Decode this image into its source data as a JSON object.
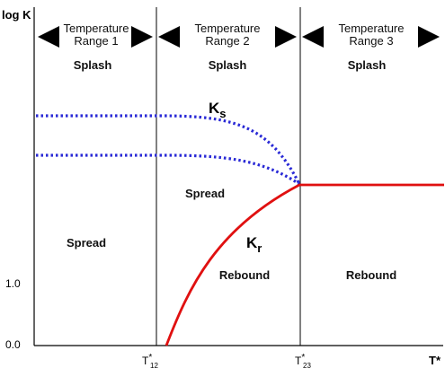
{
  "axes": {
    "y_label": "log K",
    "x_label": "T*",
    "y_ticks": [
      "1.0",
      "0.0"
    ],
    "x_ticks": [
      {
        "main": "T",
        "sup": "*",
        "sub": "12"
      },
      {
        "main": "T",
        "sup": "*",
        "sub": "23"
      }
    ]
  },
  "ranges": [
    {
      "line1": "Temperature",
      "line2": "Range 1",
      "top": "Splash",
      "bottom": "Spread"
    },
    {
      "line1": "Temperature",
      "line2": "Range 2",
      "top": "Splash",
      "middle": "Spread",
      "bottom": "Rebound"
    },
    {
      "line1": "Temperature",
      "line2": "Range 3",
      "top": "Splash",
      "bottom": "Rebound"
    }
  ],
  "curves": {
    "ks": {
      "main": "K",
      "sub": "s",
      "color": "#2a2ad6",
      "style": "dotted"
    },
    "kr": {
      "main": "K",
      "sub": "r",
      "color": "#e01010",
      "style": "solid"
    }
  }
}
